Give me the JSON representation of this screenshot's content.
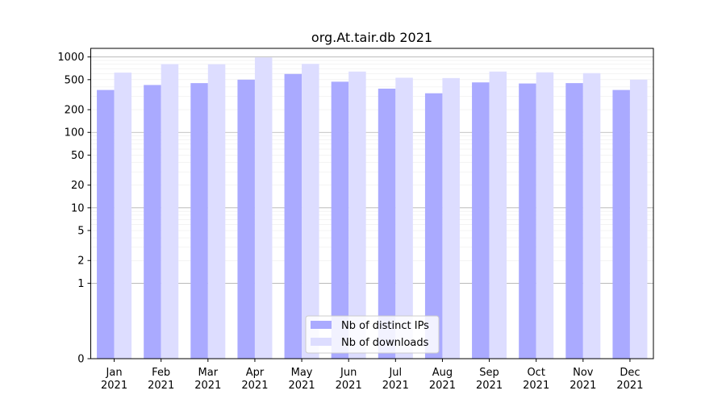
{
  "chart_data": {
    "type": "bar",
    "title": "org.At.tair.db 2021",
    "xlabel": "",
    "ylabel": "",
    "y_scale": "symlog",
    "ylim": [
      0,
      1300
    ],
    "yticks": [
      0,
      1,
      2,
      5,
      10,
      20,
      50,
      100,
      200,
      500,
      1000
    ],
    "grid": true,
    "legend_position": "lower-center",
    "categories": [
      [
        "Jan",
        "2021"
      ],
      [
        "Feb",
        "2021"
      ],
      [
        "Mar",
        "2021"
      ],
      [
        "Apr",
        "2021"
      ],
      [
        "May",
        "2021"
      ],
      [
        "Jun",
        "2021"
      ],
      [
        "Jul",
        "2021"
      ],
      [
        "Aug",
        "2021"
      ],
      [
        "Sep",
        "2021"
      ],
      [
        "Oct",
        "2021"
      ],
      [
        "Nov",
        "2021"
      ],
      [
        "Dec",
        "2021"
      ]
    ],
    "series": [
      {
        "name": "Nb of distinct IPs",
        "color": "#aaaaff",
        "values": [
          365,
          425,
          450,
          500,
          595,
          470,
          380,
          330,
          460,
          445,
          450,
          365
        ]
      },
      {
        "name": "Nb of downloads",
        "color": "#ddddff",
        "values": [
          620,
          805,
          800,
          985,
          810,
          640,
          530,
          525,
          640,
          625,
          610,
          500
        ]
      }
    ]
  }
}
